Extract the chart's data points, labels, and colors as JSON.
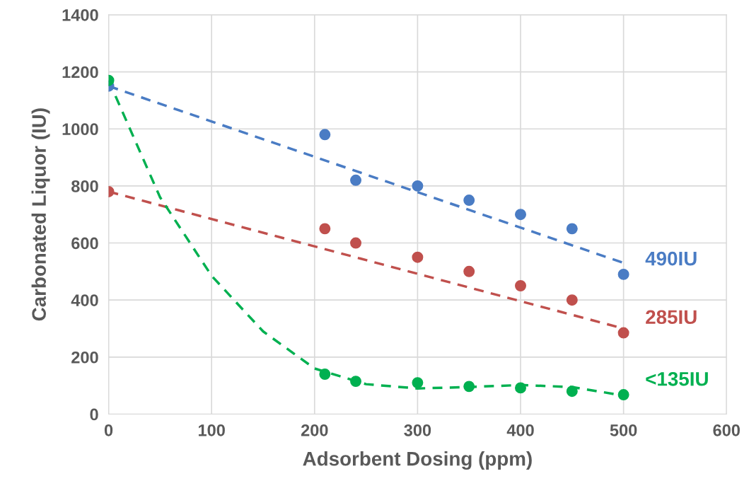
{
  "chart_data": {
    "type": "line",
    "xlabel": "Adsorbent Dosing (ppm)",
    "ylabel": "Carbonated Liquor (IU)",
    "xlim": [
      0,
      600
    ],
    "xticks": [
      0,
      100,
      200,
      300,
      400,
      500,
      600
    ],
    "ylim": [
      0,
      1400
    ],
    "yticks": [
      0,
      200,
      400,
      600,
      800,
      1000,
      1200,
      1400
    ],
    "grid": true,
    "legend": false,
    "series": [
      {
        "marker": "none",
        "line_style": "dashed",
        "color": "#4a7cc4",
        "x": [
          0,
          500
        ],
        "values": [
          1150,
          530
        ]
      },
      {
        "marker": "none",
        "line_style": "dashed",
        "color": "#c0504d",
        "x": [
          0,
          500
        ],
        "values": [
          780,
          300
        ]
      },
      {
        "marker": "none",
        "line_style": "dashed",
        "color": "#00b050",
        "x": [
          0,
          50,
          100,
          150,
          200,
          250,
          300,
          350,
          400,
          450,
          500
        ],
        "values": [
          1170,
          760,
          485,
          290,
          160,
          105,
          90,
          95,
          102,
          95,
          65
        ]
      },
      {
        "type": "scatter",
        "marker": "circle",
        "name": "490IU",
        "color": "#4a7cc4",
        "x": [
          0,
          210,
          240,
          300,
          350,
          400,
          450,
          500
        ],
        "values": [
          1150,
          980,
          820,
          800,
          750,
          700,
          650,
          490
        ]
      },
      {
        "type": "scatter",
        "marker": "circle",
        "name": "285IU",
        "color": "#c0504d",
        "x": [
          0,
          210,
          240,
          300,
          350,
          400,
          450,
          500
        ],
        "values": [
          780,
          650,
          600,
          550,
          500,
          450,
          400,
          285
        ]
      },
      {
        "type": "scatter",
        "marker": "circle",
        "name": "<135IU",
        "color": "#00b050",
        "x": [
          0,
          210,
          240,
          300,
          350,
          400,
          450,
          500
        ],
        "values": [
          1170,
          140,
          115,
          110,
          97,
          92,
          80,
          68
        ]
      }
    ]
  }
}
